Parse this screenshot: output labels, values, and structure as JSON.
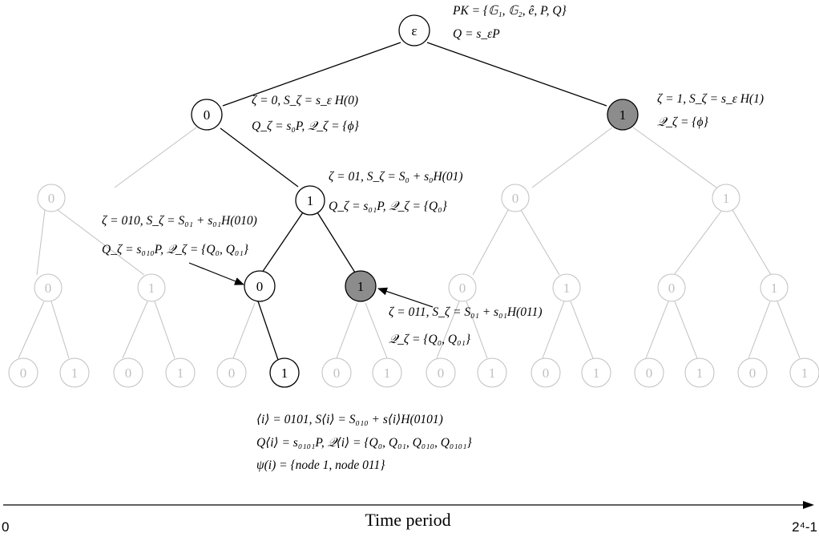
{
  "root": {
    "label": "ε"
  },
  "pk_line": "PK = {𝔾₁, 𝔾₂, ê, P, Q}",
  "q_line": "Q = s_εP",
  "node_labels": {
    "zero": "0",
    "one": "1"
  },
  "annotations": {
    "n0_a": "ζ = 0, S_ζ = s_ε H(0)",
    "n0_b": "Q_ζ = s₀P, 𝒬_ζ = {ϕ}",
    "n1_a": "ζ = 1, S_ζ = s_ε H(1)",
    "n1_b": "𝒬_ζ = {ϕ}",
    "n01_a": "ζ = 01, S_ζ = S₀ + s₀H(01)",
    "n01_b": "Q_ζ = s₀₁P, 𝒬_ζ = {Q₀}",
    "n010_a": "ζ = 010, S_ζ = S₀₁ + s₀₁H(010)",
    "n010_b": "Q_ζ = s₀₁₀P, 𝒬_ζ = {Q₀, Q₀₁}",
    "n011_a": "ζ = 011, S_ζ = S₀₁ + s₀₁H(011)",
    "n011_b": "𝒬_ζ = {Q₀, Q₀₁}",
    "leaf_a": "⟨i⟩ = 0101, S⟨i⟩ = S₀₁₀ + s⟨i⟩H(0101)",
    "leaf_b": "Q⟨i⟩ = s₀₁₀₁P, 𝒬⟨i⟩ = {Q₀, Q₀₁, Q₀₁₀, Q₀₁₀₁}",
    "leaf_c": "ψ(i) = {node 1, node 011}"
  },
  "axis": {
    "label": "Time period",
    "start": "0",
    "end": "2⁴-1"
  },
  "colors": {
    "active_stroke": "#000000",
    "faded": "#c0c0c0",
    "shaded_fill": "#8c8c8c"
  }
}
